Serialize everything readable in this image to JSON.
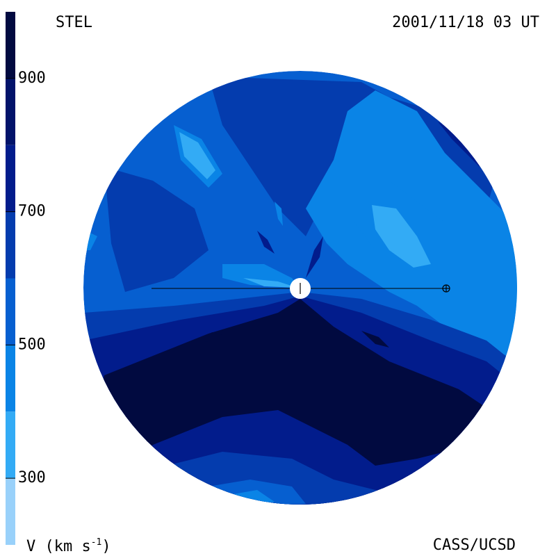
{
  "labels": {
    "top_left": "STEL",
    "top_right": "2001/11/18 03 UT",
    "bottom_right": "CASS/UCSD"
  },
  "chart_data": {
    "type": "heatmap",
    "colorbar": {
      "title_main": "V (km s",
      "title_exp": "-1",
      "title_close": ")",
      "range": [
        200,
        1000
      ],
      "ticks": [
        {
          "value": 300,
          "label": "300"
        },
        {
          "value": 500,
          "label": "500"
        },
        {
          "value": 700,
          "label": "700"
        },
        {
          "value": 900,
          "label": "900"
        }
      ],
      "bands": [
        {
          "from": 200,
          "to": 300,
          "color": "#99d1fa"
        },
        {
          "from": 300,
          "to": 400,
          "color": "#33abf5"
        },
        {
          "from": 400,
          "to": 500,
          "color": "#0a84e6"
        },
        {
          "from": 500,
          "to": 600,
          "color": "#065fd0"
        },
        {
          "from": 600,
          "to": 700,
          "color": "#043cae"
        },
        {
          "from": 700,
          "to": 800,
          "color": "#021c8c"
        },
        {
          "from": 800,
          "to": 900,
          "color": "#02136a"
        },
        {
          "from": 900,
          "to": 1000,
          "color": "#010a40"
        }
      ]
    }
  }
}
